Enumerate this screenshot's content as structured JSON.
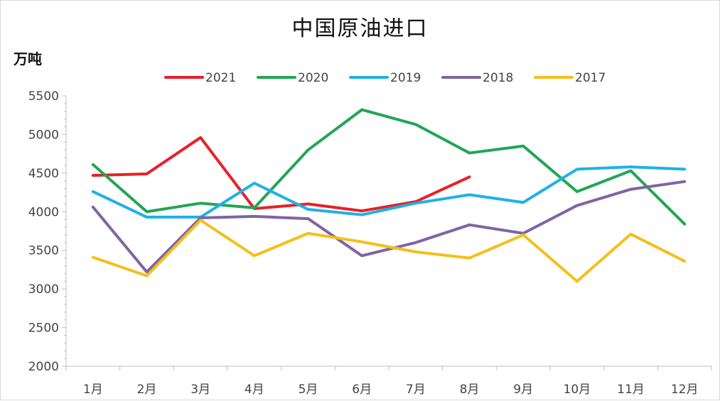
{
  "chart_data": {
    "type": "line",
    "title": "中国原油进口",
    "ylabel": "万吨",
    "xlabel": "",
    "categories": [
      "1月",
      "2月",
      "3月",
      "4月",
      "5月",
      "6月",
      "7月",
      "8月",
      "9月",
      "10月",
      "11月",
      "12月"
    ],
    "ylim": [
      2000,
      5500
    ],
    "yticks": [
      2000,
      2500,
      3000,
      3500,
      4000,
      4500,
      5000,
      5500
    ],
    "legend_position": "top",
    "series": [
      {
        "name": "2021",
        "color": "#e8202a",
        "values": [
          4470,
          4490,
          4960,
          4040,
          4100,
          4010,
          4130,
          4450,
          null,
          null,
          null,
          null
        ]
      },
      {
        "name": "2020",
        "color": "#20a655",
        "values": [
          4610,
          4000,
          4110,
          4050,
          4800,
          5320,
          5130,
          4760,
          4850,
          4260,
          4530,
          3840
        ]
      },
      {
        "name": "2019",
        "color": "#1fb1e6",
        "values": [
          4260,
          3930,
          3930,
          4370,
          4030,
          3960,
          4110,
          4220,
          4120,
          4550,
          4580,
          4550
        ]
      },
      {
        "name": "2018",
        "color": "#8064a2",
        "values": [
          4060,
          3220,
          3920,
          3940,
          3910,
          3430,
          3600,
          3830,
          3720,
          4080,
          4290,
          4390
        ]
      },
      {
        "name": "2017",
        "color": "#f5bf1a",
        "values": [
          3410,
          3170,
          3890,
          3430,
          3720,
          3610,
          3480,
          3400,
          3700,
          3100,
          3710,
          3360
        ]
      }
    ]
  }
}
